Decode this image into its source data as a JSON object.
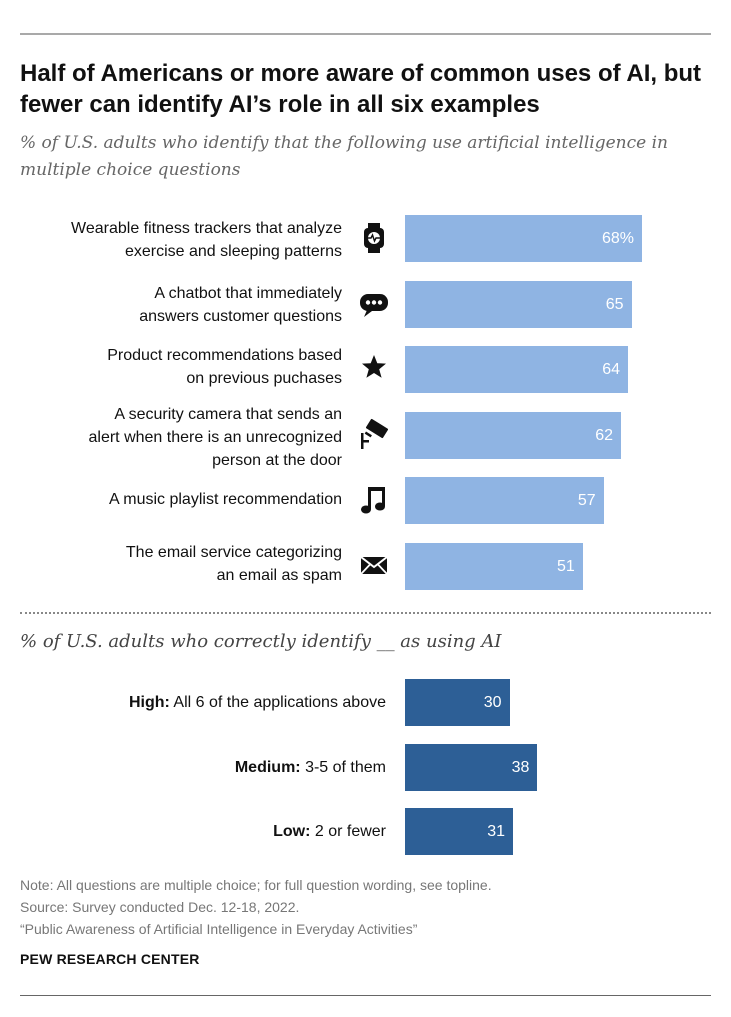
{
  "title": "Half of Americans or more aware of common uses of AI, but fewer can identify AI’s role in all six examples",
  "subtitle": "% of U.S. adults who identify that the following use artificial intelligence in multiple choice questions",
  "subtitle2": "% of U.S. adults who correctly identify __ as using AI",
  "chart_data": [
    {
      "type": "bar",
      "orientation": "horizontal",
      "categories": [
        "Wearable fitness trackers that analyze exercise and sleeping patterns",
        "A chatbot that immediately answers customer questions",
        "Product recommendations based on previous puchases",
        "A security camera that sends an alert when there is an unrecognized person at the door",
        "A music playlist recommendation",
        "The email service categorizing an email as spam"
      ],
      "label_lines": [
        [
          "Wearable fitness trackers that analyze",
          "exercise and sleeping patterns"
        ],
        [
          "A chatbot that immediately",
          "answers customer questions"
        ],
        [
          "Product recommendations based",
          "on previous puchases"
        ],
        [
          "A security camera that sends an",
          "alert when there is an unrecognized",
          "person at the door"
        ],
        [
          "A music playlist recommendation"
        ],
        [
          "The email service categorizing",
          "an email as spam"
        ]
      ],
      "icons": [
        "smartwatch-icon",
        "chatbot-icon",
        "star-icon",
        "security-camera-icon",
        "music-note-icon",
        "envelope-icon"
      ],
      "values": [
        68,
        65,
        64,
        62,
        57,
        51
      ],
      "value_labels": [
        "68%",
        "65",
        "64",
        "62",
        "57",
        "51"
      ],
      "color": "#8fb4e3"
    },
    {
      "type": "bar",
      "orientation": "horizontal",
      "categories": [
        "High: All 6 of the applications above",
        "Medium: 3-5 of them",
        "Low: 2 or fewer"
      ],
      "label_bold": [
        "High:",
        "Medium:",
        "Low:"
      ],
      "label_rest": [
        " All 6 of the applications above",
        " 3-5 of them",
        " 2 or fewer"
      ],
      "values": [
        30,
        38,
        31
      ],
      "value_labels": [
        "30",
        "38",
        "31"
      ],
      "color": "#2d5f96"
    }
  ],
  "notes": [
    "Note: All questions are multiple choice; for full question wording, see topline.",
    "Source: Survey conducted Dec. 12-18, 2022.",
    "“Public Awareness of Artificial Intelligence in Everyday Activities”"
  ],
  "brand": "PEW RESEARCH CENTER",
  "colors": {
    "light_bar": "#8fb4e3",
    "dark_bar": "#2d5f96"
  }
}
